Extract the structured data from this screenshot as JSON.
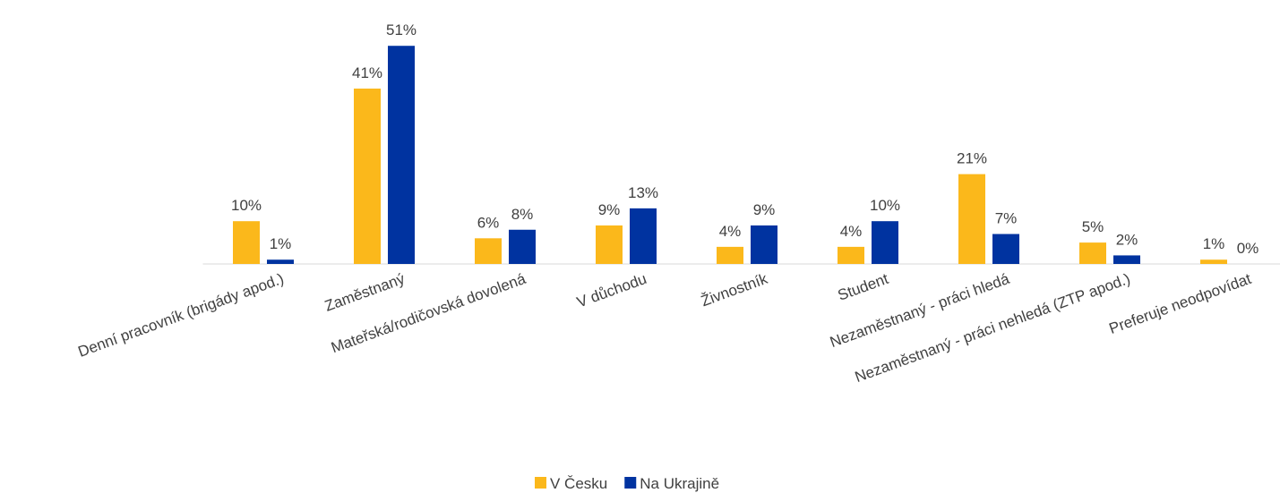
{
  "chart_data": {
    "type": "bar",
    "categories": [
      "Denní pracovník (brigády apod.)",
      "Zaměstnaný",
      "Mateřská/rodičovská dovolená",
      "V důchodu",
      "Živnostník",
      "Student",
      "Nezaměstnaný - práci hledá",
      "Nezaměstnaný - práci nehledá (ZTP apod.)",
      "Preferuje neodpovídat"
    ],
    "series": [
      {
        "name": "V Česku",
        "color": "#fbb81b",
        "values": [
          10,
          41,
          6,
          9,
          4,
          4,
          21,
          5,
          1
        ],
        "value_labels": [
          "10%",
          "41%",
          "6%",
          "9%",
          "4%",
          "4%",
          "21%",
          "5%",
          "1%"
        ]
      },
      {
        "name": "Na Ukrajině",
        "color": "#0033a0",
        "values": [
          1,
          51,
          8,
          13,
          9,
          10,
          7,
          2,
          0
        ],
        "value_labels": [
          "1%",
          "51%",
          "8%",
          "13%",
          "9%",
          "10%",
          "7%",
          "2%",
          "0%"
        ]
      }
    ],
    "legend": "bottom"
  }
}
